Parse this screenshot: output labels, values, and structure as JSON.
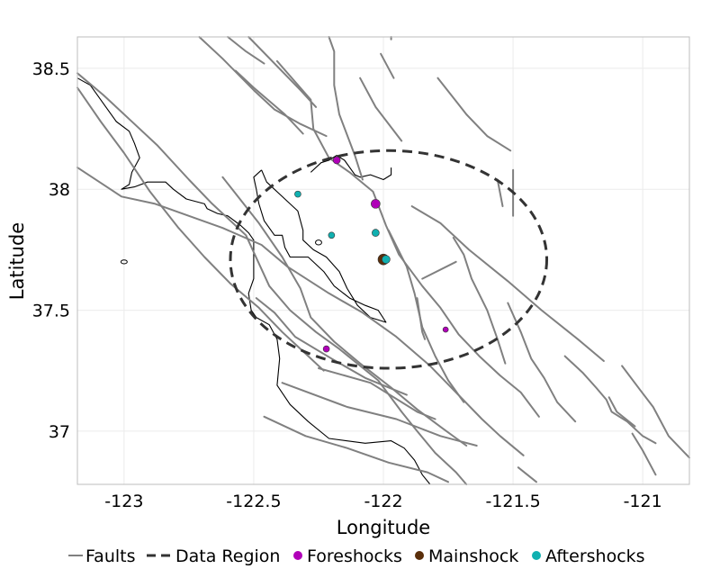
{
  "axes": {
    "xlabel": "Longitude",
    "ylabel": "Latitude",
    "xlim": [
      -123.18,
      -120.82
    ],
    "ylim": [
      36.78,
      38.63
    ],
    "xticks": [
      {
        "value": -123,
        "label": "-123"
      },
      {
        "value": -122.5,
        "label": "-122.5"
      },
      {
        "value": -122,
        "label": "-122"
      },
      {
        "value": -121.5,
        "label": "-121.5"
      },
      {
        "value": -121,
        "label": "-121"
      }
    ],
    "yticks": [
      {
        "value": 37,
        "label": "37"
      },
      {
        "value": 37.5,
        "label": "37.5"
      },
      {
        "value": 38,
        "label": "38"
      },
      {
        "value": 38.5,
        "label": "38.5"
      }
    ]
  },
  "legend": {
    "faults": "Faults",
    "region": "Data Region",
    "foreshocks": "Foreshocks",
    "mainshock": "Mainshock",
    "aftershocks": "Aftershocks"
  },
  "colors": {
    "faults": "#808080",
    "region": "#333333",
    "foreshocks": "#b000b8",
    "mainshock": "#5a2e0a",
    "aftershocks": "#10b0b0",
    "coast": "#000000",
    "grid": "#ebebeb"
  },
  "chart_data": {
    "type": "scatter",
    "region": {
      "center": [
        -121.98,
        37.71
      ],
      "radius_lon": 0.61,
      "radius_lat": 0.45
    },
    "series": [
      {
        "name": "Foreshocks",
        "points": [
          {
            "lon": -122.18,
            "lat": 38.12,
            "size": 4
          },
          {
            "lon": -122.03,
            "lat": 37.94,
            "size": 5
          },
          {
            "lon": -121.76,
            "lat": 37.42,
            "size": 3
          },
          {
            "lon": -122.22,
            "lat": 37.34,
            "size": 3.5
          }
        ]
      },
      {
        "name": "Mainshock",
        "points": [
          {
            "lon": -122.0,
            "lat": 37.71,
            "size": 6
          }
        ]
      },
      {
        "name": "Aftershocks",
        "points": [
          {
            "lon": -122.33,
            "lat": 37.98,
            "size": 3.5
          },
          {
            "lon": -122.2,
            "lat": 37.81,
            "size": 3.5
          },
          {
            "lon": -122.03,
            "lat": 37.82,
            "size": 4
          },
          {
            "lon": -121.99,
            "lat": 37.71,
            "size": 4.5
          }
        ]
      }
    ],
    "faults": [
      [
        [
          -122.71,
          38.63
        ],
        [
          -122.62,
          38.54
        ],
        [
          -122.5,
          38.41
        ],
        [
          -122.42,
          38.33
        ],
        [
          -122.32,
          38.27
        ],
        [
          -122.22,
          38.22
        ]
      ],
      [
        [
          -122.6,
          38.63
        ],
        [
          -122.53,
          38.57
        ],
        [
          -122.46,
          38.52
        ]
      ],
      [
        [
          -122.52,
          38.63
        ],
        [
          -122.32,
          38.41
        ],
        [
          -122.26,
          38.34
        ]
      ],
      [
        [
          -122.57,
          38.49
        ],
        [
          -122.5,
          38.42
        ],
        [
          -122.38,
          38.31
        ],
        [
          -122.31,
          38.23
        ]
      ],
      [
        [
          -122.21,
          38.63
        ],
        [
          -122.19,
          38.57
        ],
        [
          -122.19,
          38.43
        ],
        [
          -122.17,
          38.31
        ],
        [
          -122.11,
          38.14
        ],
        [
          -122.08,
          38.04
        ]
      ],
      [
        [
          -122.41,
          38.53
        ],
        [
          -122.28,
          38.37
        ],
        [
          -122.27,
          38.25
        ],
        [
          -122.21,
          38.13
        ],
        [
          -122.13,
          38.07
        ],
        [
          -122.04,
          37.99
        ],
        [
          -121.99,
          37.85
        ],
        [
          -121.94,
          37.73
        ],
        [
          -121.85,
          37.6
        ],
        [
          -121.78,
          37.51
        ],
        [
          -121.71,
          37.4
        ],
        [
          -121.63,
          37.31
        ],
        [
          -121.55,
          37.23
        ],
        [
          -121.47,
          37.16
        ],
        [
          -121.4,
          37.06
        ]
      ],
      [
        [
          -122.09,
          38.46
        ],
        [
          -122.03,
          38.34
        ],
        [
          -121.93,
          38.2
        ]
      ],
      [
        [
          -121.97,
          38.63
        ],
        [
          -121.97,
          38.62
        ]
      ],
      [
        [
          -122.01,
          38.56
        ],
        [
          -121.96,
          38.46
        ]
      ],
      [
        [
          -121.79,
          38.46
        ],
        [
          -121.68,
          38.31
        ],
        [
          -121.6,
          38.22
        ],
        [
          -121.51,
          38.16
        ]
      ],
      [
        [
          -121.5,
          38.08
        ],
        [
          -121.5,
          37.89
        ]
      ],
      [
        [
          -121.56,
          38.04
        ],
        [
          -121.54,
          37.93
        ]
      ],
      [
        [
          -123.18,
          38.48
        ],
        [
          -123.08,
          38.39
        ],
        [
          -122.98,
          38.29
        ],
        [
          -122.87,
          38.18
        ],
        [
          -122.75,
          38.04
        ],
        [
          -122.66,
          37.94
        ],
        [
          -122.59,
          37.87
        ],
        [
          -122.53,
          37.81
        ],
        [
          -122.5,
          37.74
        ],
        [
          -122.44,
          37.6
        ],
        [
          -122.36,
          37.5
        ],
        [
          -122.26,
          37.41
        ],
        [
          -122.17,
          37.34
        ],
        [
          -122.02,
          37.21
        ],
        [
          -121.93,
          37.08
        ],
        [
          -121.87,
          37.0
        ],
        [
          -121.8,
          36.91
        ],
        [
          -121.72,
          36.83
        ],
        [
          -121.68,
          36.78
        ]
      ],
      [
        [
          -123.18,
          38.09
        ],
        [
          -123.01,
          37.97
        ],
        [
          -122.88,
          37.94
        ],
        [
          -122.62,
          37.84
        ],
        [
          -122.47,
          37.77
        ],
        [
          -122.37,
          37.68
        ],
        [
          -122.21,
          37.57
        ],
        [
          -122.08,
          37.49
        ],
        [
          -121.95,
          37.39
        ],
        [
          -121.82,
          37.27
        ],
        [
          -121.72,
          37.16
        ],
        [
          -121.62,
          37.05
        ],
        [
          -121.55,
          36.98
        ],
        [
          -121.46,
          36.9
        ]
      ],
      [
        [
          -122.62,
          38.05
        ],
        [
          -122.48,
          37.86
        ],
        [
          -122.39,
          37.72
        ],
        [
          -122.32,
          37.59
        ],
        [
          -122.28,
          37.47
        ],
        [
          -122.19,
          37.37
        ],
        [
          -122.09,
          37.28
        ],
        [
          -121.97,
          37.18
        ],
        [
          -121.87,
          37.09
        ],
        [
          -121.77,
          37.01
        ],
        [
          -121.68,
          36.94
        ]
      ],
      [
        [
          -121.89,
          37.93
        ],
        [
          -121.78,
          37.86
        ],
        [
          -121.67,
          37.75
        ],
        [
          -121.52,
          37.62
        ],
        [
          -121.39,
          37.5
        ],
        [
          -121.25,
          37.38
        ],
        [
          -121.15,
          37.29
        ]
      ],
      [
        [
          -121.98,
          37.83
        ],
        [
          -121.91,
          37.68
        ],
        [
          -121.88,
          37.57
        ],
        [
          -121.85,
          37.43
        ],
        [
          -121.8,
          37.31
        ],
        [
          -121.75,
          37.21
        ],
        [
          -121.69,
          37.12
        ]
      ],
      [
        [
          -121.73,
          37.8
        ],
        [
          -121.69,
          37.73
        ],
        [
          -121.66,
          37.63
        ],
        [
          -121.6,
          37.5
        ],
        [
          -121.56,
          37.38
        ],
        [
          -121.53,
          37.28
        ]
      ],
      [
        [
          -121.85,
          37.63
        ],
        [
          -121.72,
          37.7
        ]
      ],
      [
        [
          -122.49,
          37.55
        ],
        [
          -122.42,
          37.49
        ],
        [
          -122.34,
          37.39
        ],
        [
          -122.2,
          37.3
        ],
        [
          -122.07,
          37.22
        ],
        [
          -121.91,
          37.15
        ]
      ],
      [
        [
          -122.25,
          37.26
        ],
        [
          -122.05,
          37.2
        ],
        [
          -121.87,
          37.08
        ],
        [
          -121.8,
          37.05
        ]
      ],
      [
        [
          -122.39,
          37.2
        ],
        [
          -122.14,
          37.1
        ],
        [
          -121.95,
          37.05
        ],
        [
          -121.78,
          36.98
        ],
        [
          -121.64,
          36.94
        ]
      ],
      [
        [
          -122.46,
          37.06
        ],
        [
          -122.3,
          36.98
        ],
        [
          -122.14,
          36.93
        ],
        [
          -121.98,
          36.87
        ],
        [
          -121.83,
          36.83
        ],
        [
          -121.75,
          36.79
        ]
      ],
      [
        [
          -121.87,
          37.55
        ],
        [
          -121.85,
          37.41
        ],
        [
          -121.84,
          37.38
        ]
      ],
      [
        [
          -121.52,
          37.53
        ],
        [
          -121.47,
          37.41
        ],
        [
          -121.43,
          37.3
        ],
        [
          -121.38,
          37.22
        ],
        [
          -121.33,
          37.12
        ],
        [
          -121.26,
          37.04
        ]
      ],
      [
        [
          -121.3,
          37.31
        ],
        [
          -121.23,
          37.24
        ],
        [
          -121.18,
          37.18
        ],
        [
          -121.14,
          37.13
        ],
        [
          -121.12,
          37.08
        ],
        [
          -121.06,
          37.04
        ],
        [
          -121.0,
          36.98
        ],
        [
          -120.95,
          36.95
        ]
      ],
      [
        [
          -121.08,
          37.27
        ],
        [
          -121.01,
          37.17
        ],
        [
          -120.96,
          37.1
        ],
        [
          -120.9,
          36.98
        ],
        [
          -120.82,
          36.89
        ]
      ],
      [
        [
          -121.13,
          37.14
        ],
        [
          -121.1,
          37.08
        ],
        [
          -121.03,
          37.02
        ]
      ],
      [
        [
          -121.04,
          36.99
        ],
        [
          -121.0,
          36.92
        ],
        [
          -120.95,
          36.82
        ]
      ],
      [
        [
          -121.48,
          36.85
        ],
        [
          -121.41,
          36.79
        ]
      ],
      [
        [
          -123.18,
          38.42
        ],
        [
          -123.09,
          38.28
        ],
        [
          -123.0,
          38.15
        ],
        [
          -122.9,
          37.99
        ],
        [
          -122.79,
          37.84
        ],
        [
          -122.69,
          37.72
        ],
        [
          -122.59,
          37.61
        ],
        [
          -122.48,
          37.51
        ],
        [
          -122.39,
          37.41
        ],
        [
          -122.3,
          37.32
        ],
        [
          -122.23,
          37.25
        ]
      ]
    ],
    "coastline": [
      [
        [
          -123.18,
          38.46
        ],
        [
          -123.13,
          38.43
        ],
        [
          -123.07,
          38.34
        ],
        [
          -123.03,
          38.28
        ],
        [
          -122.98,
          38.24
        ],
        [
          -122.96,
          38.19
        ],
        [
          -122.94,
          38.13
        ],
        [
          -122.97,
          38.07
        ],
        [
          -122.98,
          38.02
        ],
        [
          -123.01,
          38.0
        ],
        [
          -122.96,
          38.01
        ],
        [
          -122.91,
          38.03
        ],
        [
          -122.84,
          38.03
        ],
        [
          -122.81,
          38.0
        ],
        [
          -122.76,
          37.96
        ],
        [
          -122.69,
          37.94
        ],
        [
          -122.68,
          37.92
        ],
        [
          -122.64,
          37.9
        ],
        [
          -122.6,
          37.89
        ],
        [
          -122.55,
          37.85
        ],
        [
          -122.52,
          37.82
        ],
        [
          -122.5,
          37.79
        ],
        [
          -122.5,
          37.71
        ],
        [
          -122.5,
          37.63
        ],
        [
          -122.52,
          37.57
        ],
        [
          -122.51,
          37.5
        ],
        [
          -122.49,
          37.47
        ],
        [
          -122.44,
          37.44
        ],
        [
          -122.41,
          37.38
        ],
        [
          -122.4,
          37.3
        ],
        [
          -122.41,
          37.19
        ],
        [
          -122.36,
          37.11
        ],
        [
          -122.29,
          37.04
        ],
        [
          -122.21,
          36.97
        ],
        [
          -122.07,
          36.95
        ],
        [
          -121.97,
          36.96
        ],
        [
          -121.92,
          36.93
        ],
        [
          -121.88,
          36.88
        ],
        [
          -121.85,
          36.82
        ],
        [
          -121.82,
          36.78
        ]
      ],
      [
        [
          -122.28,
          38.07
        ],
        [
          -122.24,
          38.11
        ],
        [
          -122.21,
          38.12
        ],
        [
          -122.18,
          38.14
        ],
        [
          -122.15,
          38.12
        ],
        [
          -122.11,
          38.06
        ],
        [
          -122.09,
          38.05
        ],
        [
          -122.05,
          38.06
        ],
        [
          -122.0,
          38.04
        ],
        [
          -121.97,
          38.06
        ],
        [
          -121.97,
          38.09
        ]
      ],
      [
        [
          -122.47,
          38.08
        ],
        [
          -122.45,
          38.03
        ],
        [
          -122.38,
          37.96
        ],
        [
          -122.33,
          37.91
        ],
        [
          -122.31,
          37.83
        ],
        [
          -122.31,
          37.79
        ],
        [
          -122.27,
          37.75
        ],
        [
          -122.22,
          37.72
        ],
        [
          -122.17,
          37.66
        ],
        [
          -122.14,
          37.59
        ],
        [
          -122.1,
          37.52
        ],
        [
          -122.05,
          37.47
        ],
        [
          -121.99,
          37.45
        ],
        [
          -122.02,
          37.5
        ],
        [
          -122.07,
          37.52
        ],
        [
          -122.13,
          37.55
        ],
        [
          -122.19,
          37.6
        ],
        [
          -122.23,
          37.66
        ],
        [
          -122.29,
          37.72
        ],
        [
          -122.36,
          37.72
        ],
        [
          -122.38,
          37.76
        ],
        [
          -122.39,
          37.81
        ],
        [
          -122.42,
          37.81
        ],
        [
          -122.46,
          37.87
        ],
        [
          -122.48,
          37.94
        ],
        [
          -122.49,
          38.0
        ],
        [
          -122.5,
          38.05
        ],
        [
          -122.47,
          38.08
        ]
      ]
    ],
    "islands": [
      {
        "lon": -123.0,
        "lat": 37.7,
        "rlon": 0.012,
        "rlat": 0.008
      },
      {
        "lon": -122.25,
        "lat": 37.78,
        "rlon": 0.012,
        "rlat": 0.01
      }
    ]
  }
}
